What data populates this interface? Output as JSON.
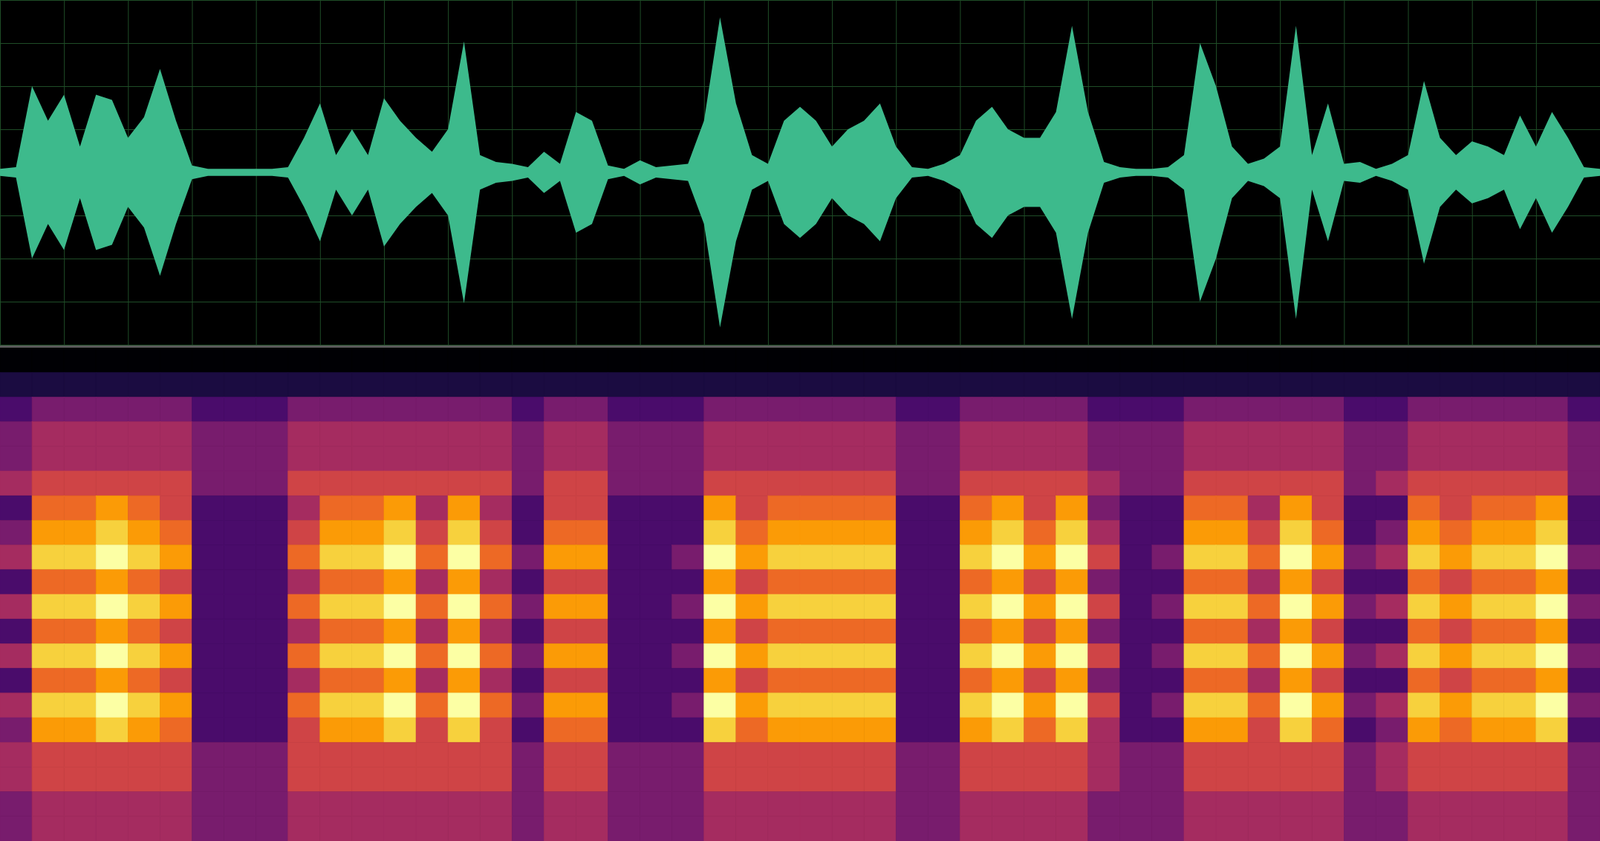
{
  "chart_data": [
    {
      "type": "area",
      "color": "#3dba8c",
      "grid": true,
      "tick_labels": false,
      "xlim": [
        0,
        100
      ],
      "ylim": [
        -1,
        1
      ],
      "xticks": [
        0,
        4,
        8,
        12,
        16,
        20,
        24,
        28,
        32,
        36,
        40,
        44,
        48,
        52,
        56,
        60,
        64,
        68,
        72,
        76,
        80,
        84,
        88,
        92,
        96,
        100
      ],
      "yticks": [
        -1,
        -0.75,
        -0.5,
        -0.25,
        0,
        0.25,
        0.5,
        0.75,
        1
      ],
      "x": [
        0,
        1,
        2,
        3,
        4,
        5,
        6,
        7,
        8,
        9,
        10,
        11,
        12,
        13,
        14,
        15,
        16,
        17,
        18,
        19,
        20,
        21,
        22,
        23,
        24,
        25,
        26,
        27,
        28,
        29,
        30,
        31,
        32,
        33,
        34,
        35,
        36,
        37,
        38,
        39,
        40,
        41,
        42,
        43,
        44,
        45,
        46,
        47,
        48,
        49,
        50,
        51,
        52,
        53,
        54,
        55,
        56,
        57,
        58,
        59,
        60,
        61,
        62,
        63,
        64,
        65,
        66,
        67,
        68,
        69,
        70,
        71,
        72,
        73,
        74,
        75,
        76,
        77,
        78,
        79,
        80,
        81,
        82,
        83,
        84,
        85,
        86,
        87,
        88,
        89,
        90,
        91,
        92,
        93,
        94,
        95,
        96,
        97,
        98,
        99,
        100
      ],
      "values": [
        0.02,
        0.03,
        0.5,
        0.3,
        0.45,
        0.15,
        0.45,
        0.42,
        0.2,
        0.32,
        0.6,
        0.3,
        0.04,
        0.02,
        0.02,
        0.02,
        0.02,
        0.02,
        0.03,
        0.2,
        0.4,
        0.1,
        0.25,
        0.1,
        0.43,
        0.3,
        0.2,
        0.12,
        0.25,
        0.76,
        0.1,
        0.06,
        0.05,
        0.03,
        0.12,
        0.05,
        0.35,
        0.3,
        0.04,
        0.02,
        0.07,
        0.03,
        0.04,
        0.05,
        0.3,
        0.9,
        0.4,
        0.1,
        0.05,
        0.3,
        0.38,
        0.3,
        0.15,
        0.25,
        0.3,
        0.4,
        0.15,
        0.03,
        0.02,
        0.05,
        0.1,
        0.3,
        0.38,
        0.25,
        0.2,
        0.2,
        0.35,
        0.85,
        0.35,
        0.06,
        0.03,
        0.02,
        0.02,
        0.03,
        0.1,
        0.75,
        0.5,
        0.15,
        0.05,
        0.08,
        0.15,
        0.85,
        0.1,
        0.4,
        0.05,
        0.06,
        0.02,
        0.05,
        0.1,
        0.53,
        0.2,
        0.1,
        0.18,
        0.15,
        0.1,
        0.33,
        0.15,
        0.35,
        0.2,
        0.03,
        0.02
      ]
    },
    {
      "type": "heatmap",
      "color": "inferno",
      "tick_labels": false,
      "xlim": [
        0,
        100
      ],
      "ylim": [
        0,
        20
      ],
      "zlim": [
        0,
        9
      ],
      "x": [
        0,
        2,
        4,
        6,
        8,
        10,
        12,
        14,
        16,
        18,
        20,
        22,
        24,
        26,
        28,
        30,
        32,
        34,
        36,
        38,
        40,
        42,
        44,
        46,
        48,
        50,
        52,
        54,
        56,
        58,
        60,
        62,
        64,
        66,
        68,
        70,
        72,
        74,
        76,
        78,
        80,
        82,
        84,
        86,
        88,
        90,
        92,
        94,
        96,
        98
      ],
      "y": [
        19,
        18,
        17,
        16,
        15,
        14,
        13,
        12,
        11,
        10,
        9,
        8,
        7,
        6,
        5,
        4,
        3,
        2,
        1,
        0
      ],
      "cells": [
        [
          0,
          0,
          0,
          0,
          0,
          0,
          0,
          0,
          0,
          0,
          0,
          0,
          0,
          0,
          0,
          0,
          0,
          0,
          0,
          0,
          0,
          0,
          0,
          0,
          0,
          0,
          0,
          0,
          0,
          0,
          0,
          0,
          0,
          0,
          0,
          0,
          0,
          0,
          0,
          0,
          0,
          0,
          0,
          0,
          0,
          0,
          0,
          0,
          0,
          0
        ],
        [
          1,
          1,
          1,
          1,
          1,
          1,
          1,
          1,
          1,
          1,
          1,
          1,
          1,
          1,
          1,
          1,
          1,
          1,
          1,
          1,
          1,
          1,
          1,
          1,
          1,
          1,
          1,
          1,
          1,
          1,
          1,
          1,
          1,
          1,
          1,
          1,
          1,
          1,
          1,
          1,
          1,
          1,
          1,
          1,
          1,
          1,
          1,
          1,
          1,
          1
        ],
        [
          2,
          3,
          3,
          3,
          3,
          3,
          2,
          2,
          2,
          3,
          3,
          3,
          3,
          3,
          3,
          3,
          2,
          3,
          3,
          2,
          2,
          2,
          3,
          3,
          3,
          3,
          3,
          3,
          2,
          2,
          3,
          3,
          3,
          3,
          2,
          2,
          2,
          3,
          3,
          3,
          3,
          3,
          2,
          2,
          3,
          3,
          3,
          3,
          3,
          2
        ],
        [
          3,
          4,
          4,
          4,
          4,
          4,
          3,
          3,
          3,
          4,
          4,
          4,
          4,
          4,
          4,
          4,
          3,
          4,
          4,
          3,
          3,
          3,
          4,
          4,
          4,
          4,
          4,
          4,
          3,
          3,
          4,
          4,
          4,
          4,
          3,
          3,
          3,
          4,
          4,
          4,
          4,
          4,
          3,
          3,
          4,
          4,
          4,
          4,
          4,
          3
        ],
        [
          3,
          4,
          4,
          4,
          4,
          4,
          3,
          3,
          3,
          4,
          4,
          4,
          4,
          4,
          4,
          4,
          3,
          4,
          4,
          3,
          3,
          3,
          4,
          4,
          4,
          4,
          4,
          4,
          3,
          3,
          4,
          4,
          4,
          4,
          3,
          3,
          3,
          4,
          4,
          4,
          4,
          4,
          3,
          3,
          4,
          4,
          4,
          4,
          4,
          3
        ],
        [
          4,
          5,
          5,
          5,
          5,
          5,
          3,
          3,
          3,
          5,
          5,
          5,
          5,
          5,
          5,
          5,
          3,
          5,
          5,
          3,
          3,
          3,
          5,
          5,
          5,
          5,
          5,
          5,
          3,
          3,
          5,
          5,
          5,
          5,
          4,
          3,
          3,
          5,
          5,
          5,
          5,
          5,
          3,
          4,
          5,
          5,
          5,
          5,
          5,
          3
        ],
        [
          2,
          6,
          6,
          7,
          6,
          5,
          2,
          2,
          2,
          4,
          6,
          6,
          7,
          4,
          7,
          4,
          2,
          5,
          5,
          2,
          2,
          2,
          7,
          5,
          6,
          6,
          6,
          6,
          2,
          2,
          6,
          7,
          5,
          7,
          3,
          2,
          2,
          6,
          6,
          4,
          7,
          5,
          2,
          2,
          6,
          5,
          6,
          6,
          7,
          2
        ],
        [
          3,
          7,
          7,
          8,
          7,
          6,
          2,
          2,
          2,
          5,
          7,
          7,
          8,
          5,
          8,
          5,
          2,
          6,
          6,
          2,
          2,
          2,
          8,
          6,
          7,
          7,
          7,
          7,
          2,
          2,
          7,
          8,
          6,
          8,
          4,
          2,
          2,
          7,
          7,
          5,
          8,
          6,
          2,
          3,
          7,
          6,
          7,
          7,
          8,
          2
        ],
        [
          4,
          8,
          8,
          9,
          8,
          7,
          2,
          2,
          2,
          6,
          8,
          8,
          9,
          6,
          9,
          6,
          3,
          7,
          7,
          2,
          2,
          3,
          9,
          7,
          8,
          8,
          8,
          8,
          2,
          2,
          8,
          9,
          7,
          9,
          5,
          2,
          3,
          8,
          8,
          6,
          9,
          7,
          3,
          4,
          8,
          7,
          8,
          8,
          9,
          3
        ],
        [
          2,
          6,
          6,
          7,
          6,
          5,
          2,
          2,
          2,
          4,
          6,
          6,
          7,
          4,
          7,
          4,
          2,
          5,
          5,
          2,
          2,
          2,
          7,
          5,
          6,
          6,
          6,
          6,
          2,
          2,
          6,
          7,
          5,
          7,
          3,
          2,
          2,
          6,
          6,
          4,
          7,
          5,
          2,
          2,
          6,
          5,
          6,
          6,
          7,
          2
        ],
        [
          4,
          8,
          8,
          9,
          8,
          7,
          2,
          2,
          2,
          6,
          8,
          8,
          9,
          6,
          9,
          6,
          3,
          7,
          7,
          2,
          2,
          3,
          9,
          7,
          8,
          8,
          8,
          8,
          2,
          2,
          8,
          9,
          7,
          9,
          5,
          2,
          3,
          8,
          8,
          6,
          9,
          7,
          3,
          4,
          8,
          7,
          8,
          8,
          9,
          3
        ],
        [
          2,
          6,
          6,
          7,
          6,
          5,
          2,
          2,
          2,
          4,
          6,
          6,
          7,
          4,
          7,
          4,
          2,
          5,
          5,
          2,
          2,
          2,
          7,
          5,
          6,
          6,
          6,
          6,
          2,
          2,
          6,
          7,
          5,
          7,
          3,
          2,
          2,
          6,
          6,
          4,
          7,
          5,
          2,
          2,
          6,
          5,
          6,
          6,
          7,
          2
        ],
        [
          4,
          8,
          8,
          9,
          8,
          7,
          2,
          2,
          2,
          6,
          8,
          8,
          9,
          6,
          9,
          6,
          3,
          7,
          7,
          2,
          2,
          3,
          9,
          7,
          8,
          8,
          8,
          8,
          2,
          2,
          8,
          9,
          7,
          9,
          5,
          2,
          3,
          8,
          8,
          6,
          9,
          7,
          3,
          4,
          8,
          7,
          8,
          8,
          9,
          3
        ],
        [
          2,
          6,
          6,
          7,
          6,
          5,
          2,
          2,
          2,
          4,
          6,
          6,
          7,
          4,
          7,
          4,
          2,
          5,
          5,
          2,
          2,
          2,
          7,
          5,
          6,
          6,
          6,
          6,
          2,
          2,
          6,
          7,
          5,
          7,
          3,
          2,
          2,
          6,
          6,
          4,
          7,
          5,
          2,
          2,
          6,
          5,
          6,
          6,
          7,
          2
        ],
        [
          4,
          8,
          8,
          9,
          8,
          7,
          2,
          2,
          2,
          6,
          8,
          8,
          9,
          6,
          9,
          6,
          3,
          7,
          7,
          2,
          2,
          3,
          9,
          7,
          8,
          8,
          8,
          8,
          2,
          2,
          8,
          9,
          7,
          9,
          5,
          2,
          3,
          8,
          8,
          6,
          9,
          7,
          3,
          4,
          8,
          7,
          8,
          8,
          9,
          3
        ],
        [
          3,
          7,
          7,
          8,
          7,
          6,
          2,
          2,
          2,
          5,
          7,
          7,
          8,
          5,
          8,
          5,
          2,
          6,
          6,
          2,
          2,
          2,
          8,
          6,
          7,
          7,
          7,
          7,
          2,
          2,
          7,
          8,
          6,
          8,
          4,
          2,
          2,
          7,
          7,
          5,
          8,
          6,
          2,
          3,
          7,
          6,
          7,
          7,
          8,
          2
        ],
        [
          4,
          5,
          5,
          5,
          5,
          5,
          3,
          3,
          3,
          5,
          5,
          5,
          5,
          5,
          5,
          5,
          3,
          5,
          5,
          3,
          3,
          3,
          5,
          5,
          5,
          5,
          5,
          5,
          3,
          3,
          5,
          5,
          5,
          5,
          4,
          3,
          3,
          5,
          5,
          5,
          5,
          5,
          3,
          4,
          5,
          5,
          5,
          5,
          5,
          3
        ],
        [
          4,
          5,
          5,
          5,
          5,
          5,
          3,
          3,
          3,
          5,
          5,
          5,
          5,
          5,
          5,
          5,
          3,
          5,
          5,
          3,
          3,
          3,
          5,
          5,
          5,
          5,
          5,
          5,
          3,
          3,
          5,
          5,
          5,
          5,
          4,
          3,
          3,
          5,
          5,
          5,
          5,
          5,
          3,
          4,
          5,
          5,
          5,
          5,
          5,
          3
        ],
        [
          3,
          4,
          4,
          4,
          4,
          4,
          3,
          3,
          3,
          4,
          4,
          4,
          4,
          4,
          4,
          4,
          3,
          4,
          4,
          3,
          3,
          3,
          4,
          4,
          4,
          4,
          4,
          4,
          3,
          3,
          4,
          4,
          4,
          4,
          3,
          3,
          3,
          4,
          4,
          4,
          4,
          4,
          3,
          3,
          4,
          4,
          4,
          4,
          4,
          3
        ],
        [
          3,
          4,
          4,
          4,
          4,
          4,
          3,
          3,
          3,
          4,
          4,
          4,
          4,
          4,
          4,
          4,
          3,
          4,
          4,
          3,
          3,
          3,
          4,
          4,
          4,
          4,
          4,
          4,
          3,
          3,
          4,
          4,
          4,
          4,
          3,
          3,
          3,
          4,
          4,
          4,
          4,
          4,
          3,
          3,
          4,
          4,
          4,
          4,
          4,
          3
        ]
      ]
    }
  ]
}
